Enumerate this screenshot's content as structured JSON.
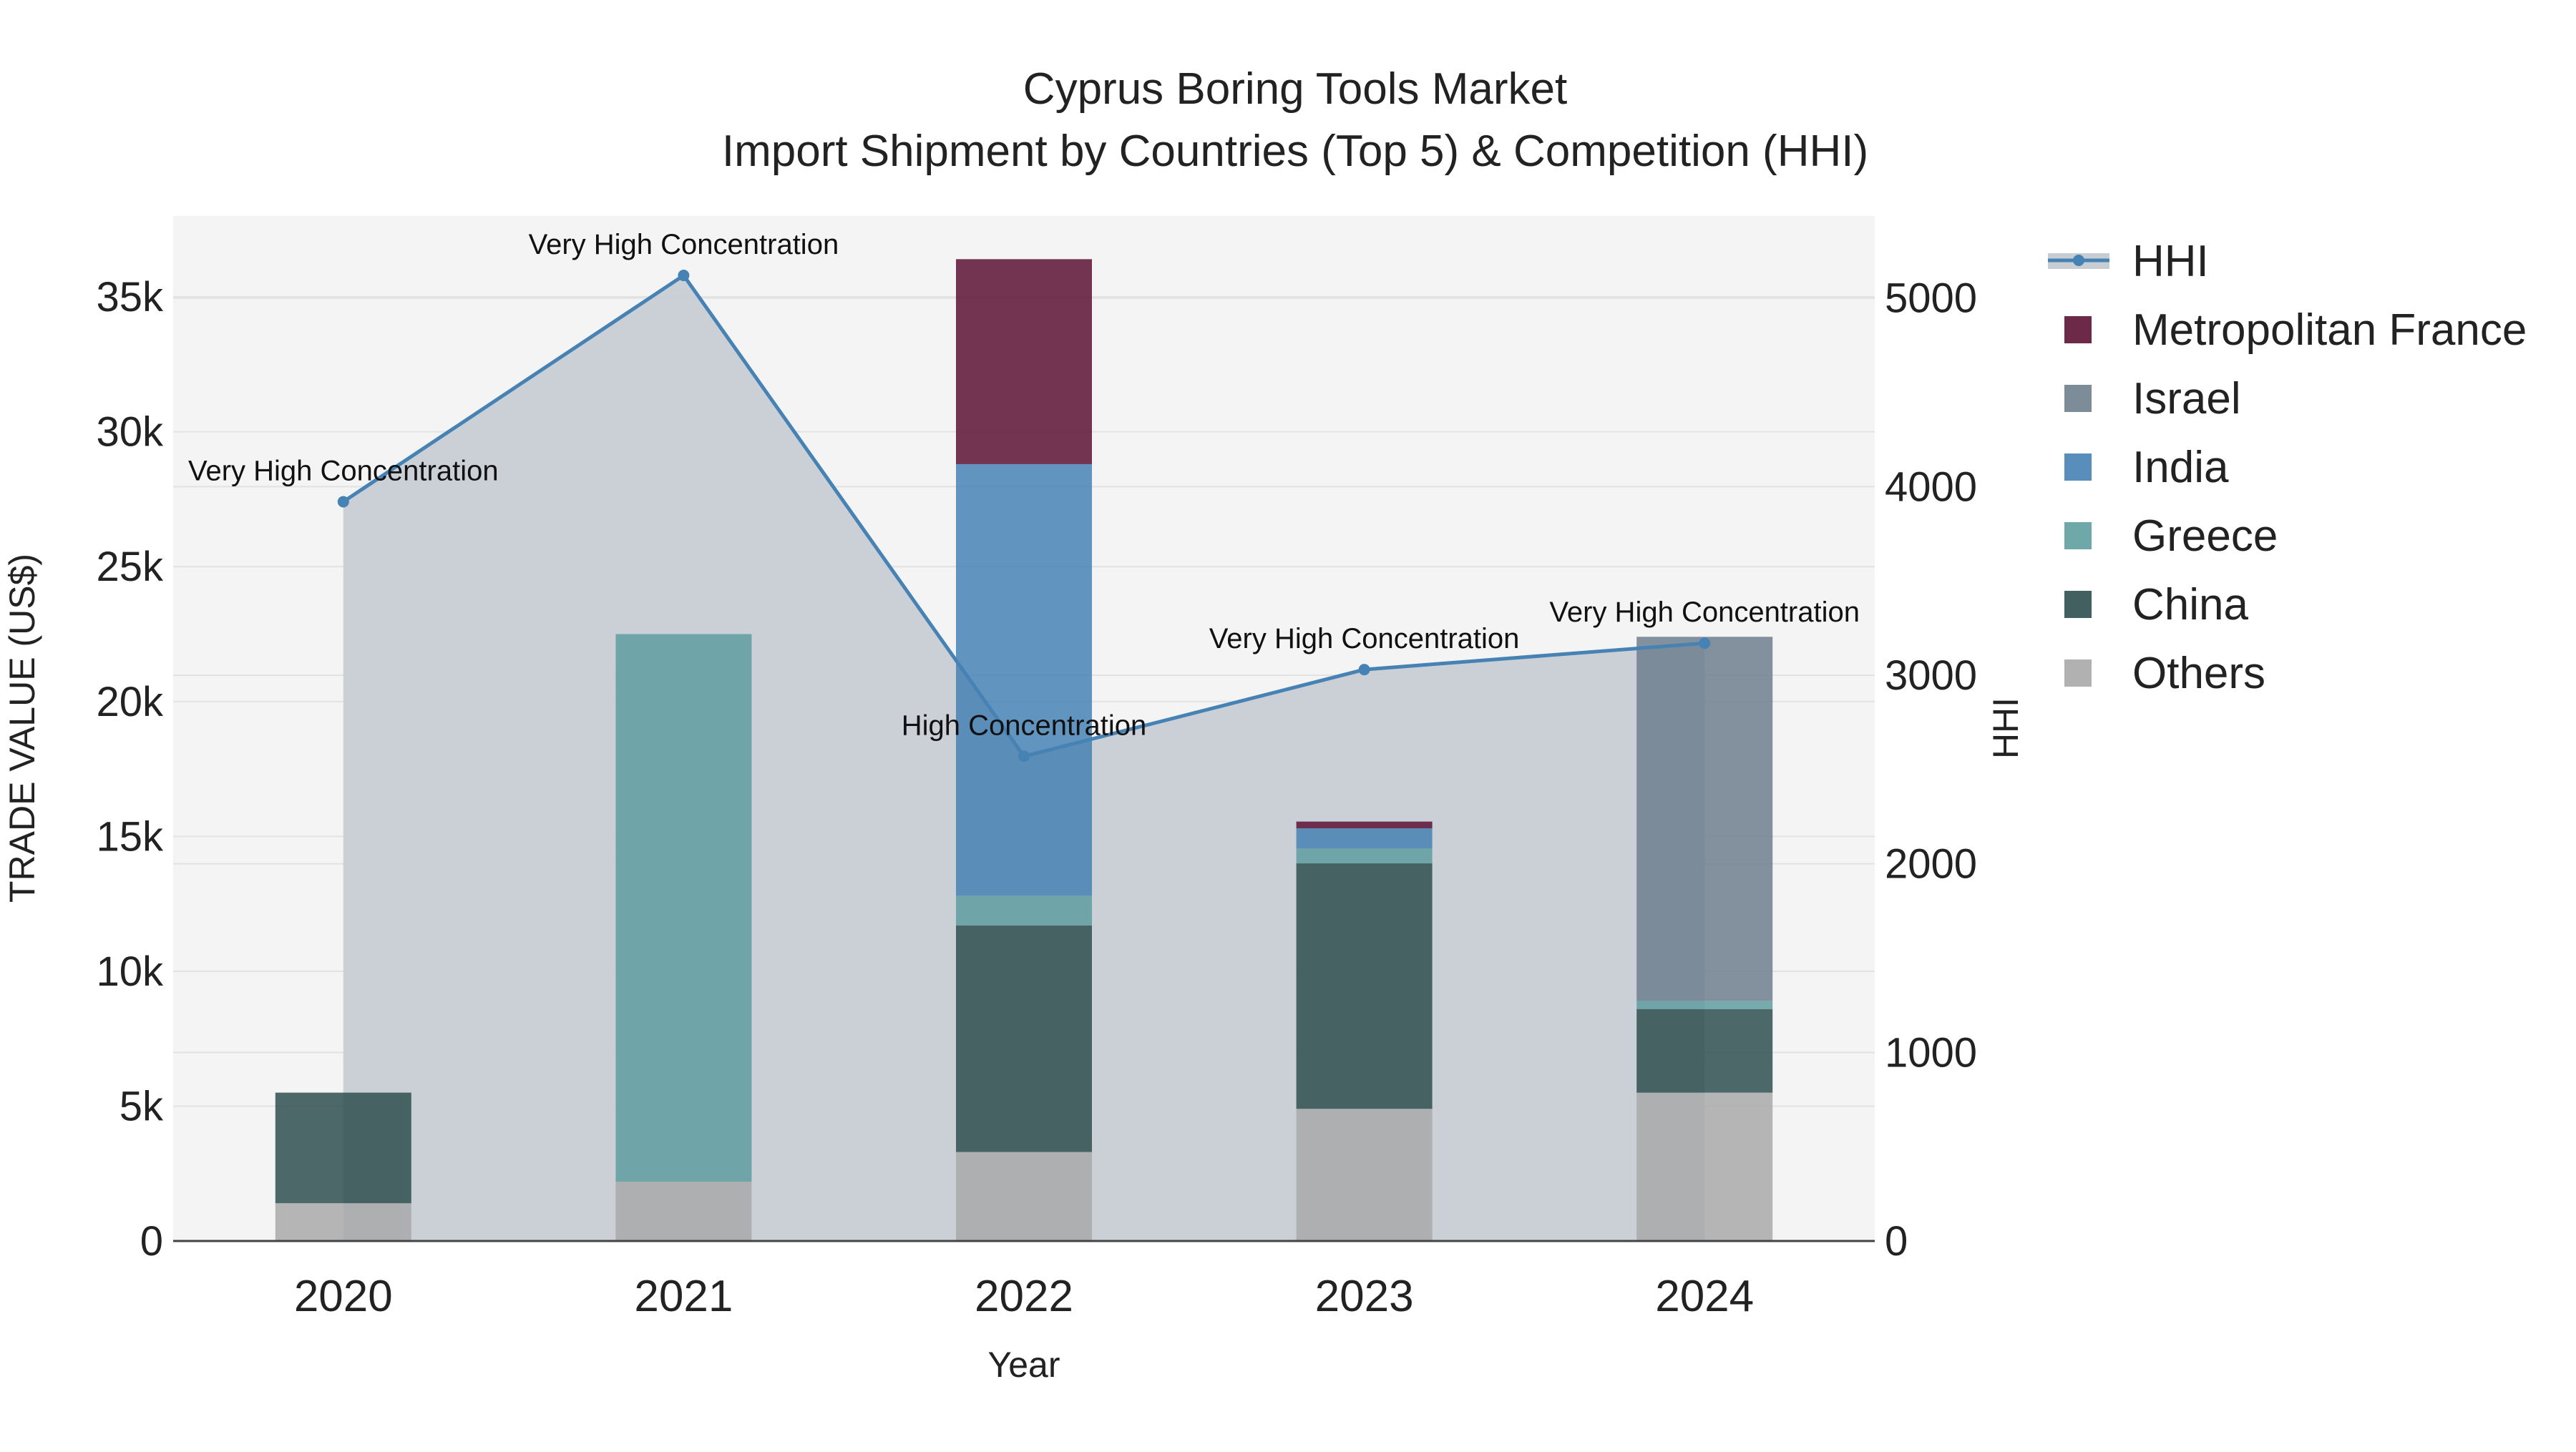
{
  "chart_data": {
    "type": "bar",
    "title": "Cyprus Boring Tools Market",
    "subtitle": "Import Shipment by Countries (Top 5) & Competition (HHI)",
    "xlabel": "Year",
    "ylabel": "TRADE VALUE (US$)",
    "y2label": "HHI",
    "categories": [
      "2020",
      "2021",
      "2022",
      "2023",
      "2024"
    ],
    "ylim": [
      0,
      38000
    ],
    "y2lim": [
      0,
      5435
    ],
    "y_ticks": [
      0,
      5000,
      10000,
      15000,
      20000,
      25000,
      30000,
      35000
    ],
    "y_tick_labels": [
      "0",
      "5k",
      "10k",
      "15k",
      "20k",
      "25k",
      "30k",
      "35k"
    ],
    "y2_ticks": [
      0,
      1000,
      2000,
      3000,
      4000,
      5000
    ],
    "y2_tick_labels": [
      "0",
      "1000",
      "2000",
      "3000",
      "4000",
      "5000"
    ],
    "stack_order": [
      "Others",
      "China",
      "Greece",
      "India",
      "Israel",
      "Metropolitan France"
    ],
    "series": [
      {
        "name": "Metropolitan France",
        "color": "#5c1234",
        "values": [
          0,
          0,
          7600,
          250,
          0
        ]
      },
      {
        "name": "Israel",
        "color": "#6e7f8e",
        "values": [
          0,
          0,
          0,
          0,
          13500
        ]
      },
      {
        "name": "India",
        "color": "#4682b4",
        "values": [
          0,
          0,
          16000,
          750,
          0
        ]
      },
      {
        "name": "Greece",
        "color": "#5f9ea0",
        "values": [
          0,
          20300,
          1100,
          550,
          300
        ]
      },
      {
        "name": "China",
        "color": "#2f4f4f",
        "values": [
          4100,
          0,
          8400,
          9100,
          3100
        ]
      },
      {
        "name": "Others",
        "color": "#a9a9a9",
        "values": [
          1400,
          2200,
          3300,
          4900,
          5500
        ]
      }
    ],
    "hhi": {
      "name": "HHI",
      "color": "#4682b4",
      "values": [
        3920,
        5120,
        2570,
        3030,
        3170
      ],
      "labels": [
        "Very High Concentration",
        "Very High Concentration",
        "High Concentration",
        "Very High Concentration",
        "Very High Concentration"
      ]
    },
    "legend_order": [
      "HHI",
      "Metropolitan France",
      "Israel",
      "India",
      "Greece",
      "China",
      "Others"
    ],
    "legend_position": "right",
    "plot_background": "#f4f4f4",
    "hhi_fill_color": "#c8cdd4",
    "grid": true
  }
}
